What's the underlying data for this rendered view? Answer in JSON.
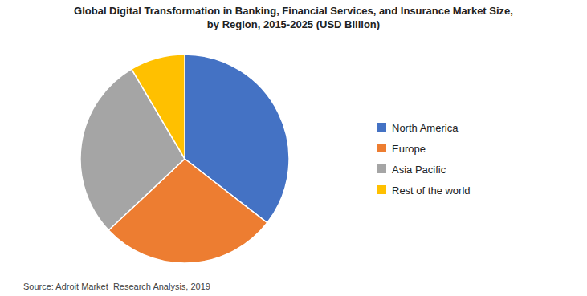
{
  "chart_data": {
    "type": "pie",
    "title": "Global Digital Transformation in Banking, Financial Services, and Insurance Market Size,\nby Region, 2015-2025 (USD Billion)",
    "categories": [
      "North America",
      "Europe",
      "Asia Pacific",
      "Rest of the world"
    ],
    "values": [
      35.5,
      27.5,
      28.5,
      8.5
    ],
    "colors": [
      "#4472C4",
      "#ED7D31",
      "#A5A5A5",
      "#FFC000"
    ],
    "annotations": [
      "Source: Adroit Market  Research Analysis, 2019"
    ],
    "legend": "right"
  }
}
